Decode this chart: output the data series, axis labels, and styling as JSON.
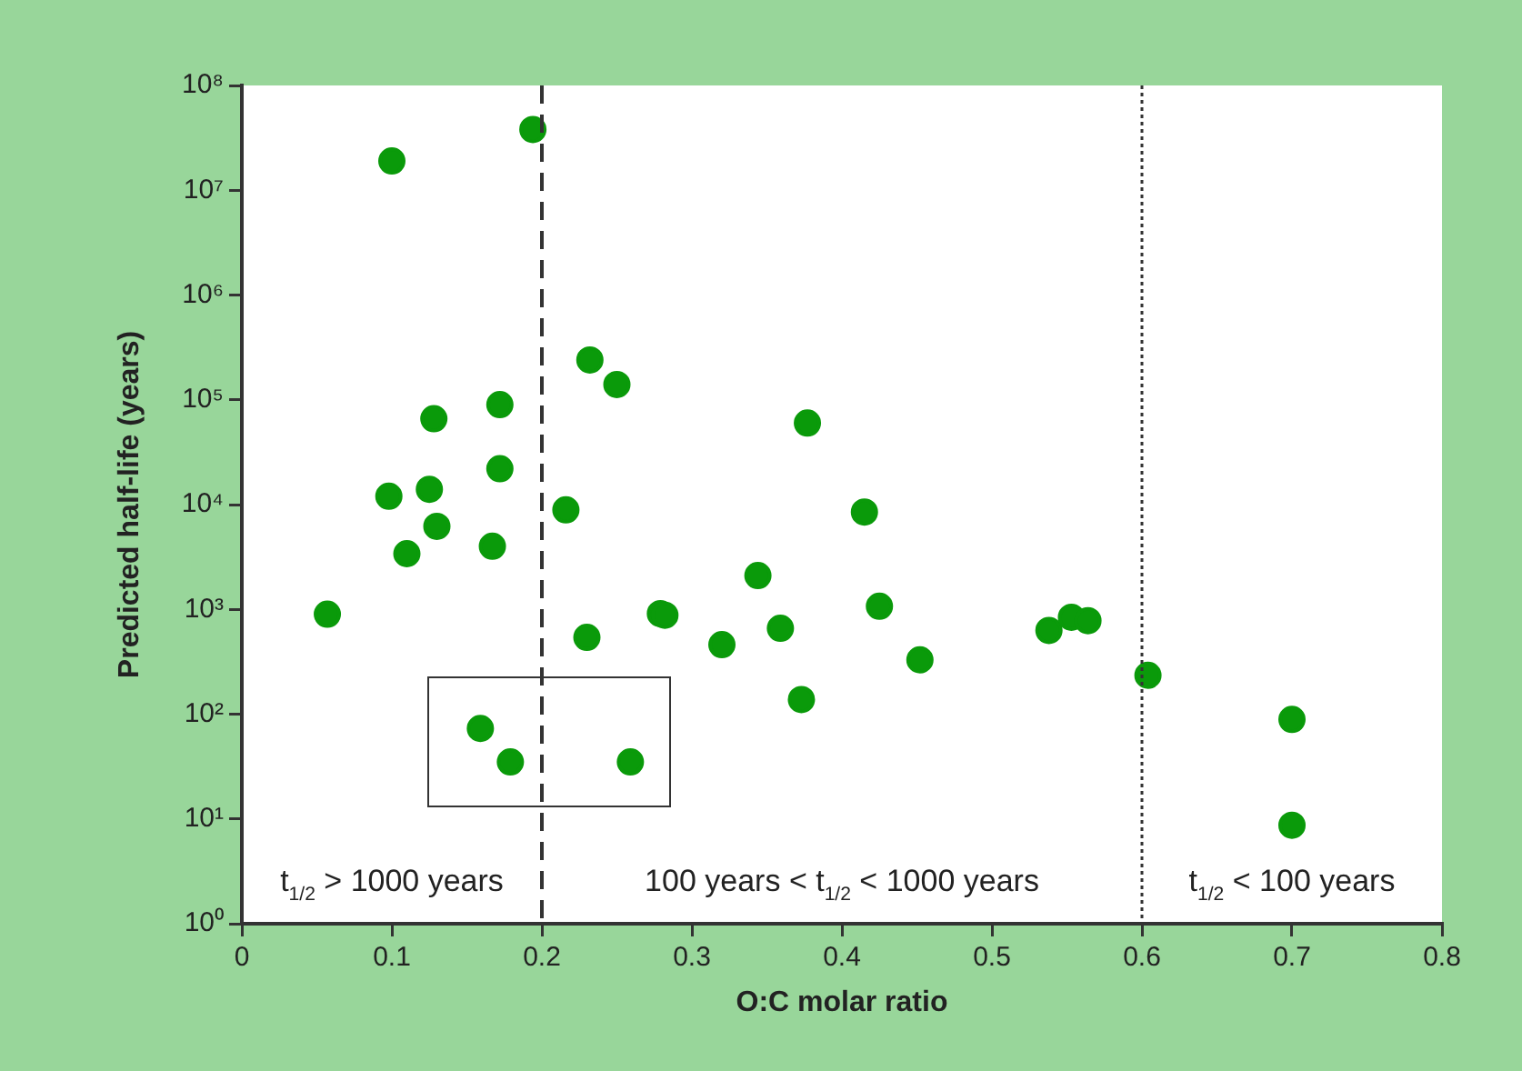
{
  "chart_data": {
    "type": "scatter",
    "xlabel": "O:C molar ratio",
    "ylabel": "Predicted half-life (years)",
    "x": [
      0.057,
      0.1,
      0.194,
      0.128,
      0.172,
      0.232,
      0.25,
      0.377,
      0.098,
      0.125,
      0.172,
      0.13,
      0.11,
      0.167,
      0.216,
      0.415,
      0.344,
      0.359,
      0.425,
      0.373,
      0.452,
      0.538,
      0.553,
      0.564,
      0.604,
      0.7,
      0.7,
      0.23,
      0.279,
      0.282,
      0.32,
      0.159,
      0.179,
      0.259
    ],
    "series": [
      {
        "color": "#0a9a0a",
        "values": [
          900,
          19000000,
          38000000,
          66000,
          90000,
          240000,
          140000,
          60000,
          12000,
          14000,
          22000,
          6200,
          3400,
          4000,
          8900,
          8500,
          2100,
          660,
          1070,
          138,
          330,
          630,
          840,
          780,
          235,
          89,
          8.7,
          540,
          910,
          880,
          460,
          73,
          35,
          35
        ]
      }
    ],
    "xlim": [
      0,
      0.8
    ],
    "xticks": [
      0,
      0.1,
      0.2,
      0.3,
      0.4,
      0.5,
      0.6,
      0.7,
      0.8
    ],
    "ylim": [
      1,
      100000000
    ],
    "yticks": [
      {
        "value": 1,
        "label": "10⁰"
      },
      {
        "value": 10,
        "label": "10¹"
      },
      {
        "value": 100,
        "label": "10²"
      },
      {
        "value": 1000,
        "label": "10³"
      },
      {
        "value": 10000,
        "label": "10⁴"
      },
      {
        "value": 100000,
        "label": "10⁵"
      },
      {
        "value": 1000000,
        "label": "10⁶"
      },
      {
        "value": 10000000,
        "label": "10⁷"
      },
      {
        "value": 100000000,
        "label": "10⁸"
      }
    ],
    "log": "y",
    "grid": false,
    "legend": false,
    "marker": "circle",
    "ref_lines": [
      {
        "axis": "x",
        "value": 0.2,
        "line_style": "dashed",
        "color": "#333333"
      },
      {
        "axis": "x",
        "value": 0.6,
        "line_style": "dotted",
        "color": "#333333"
      }
    ],
    "annotations": [
      "t$_{1/2}$ > 1000 years",
      "100 years < t$_{1/2}$ < 1000 years",
      "t$_{1/2}$ < 100 years"
    ]
  }
}
